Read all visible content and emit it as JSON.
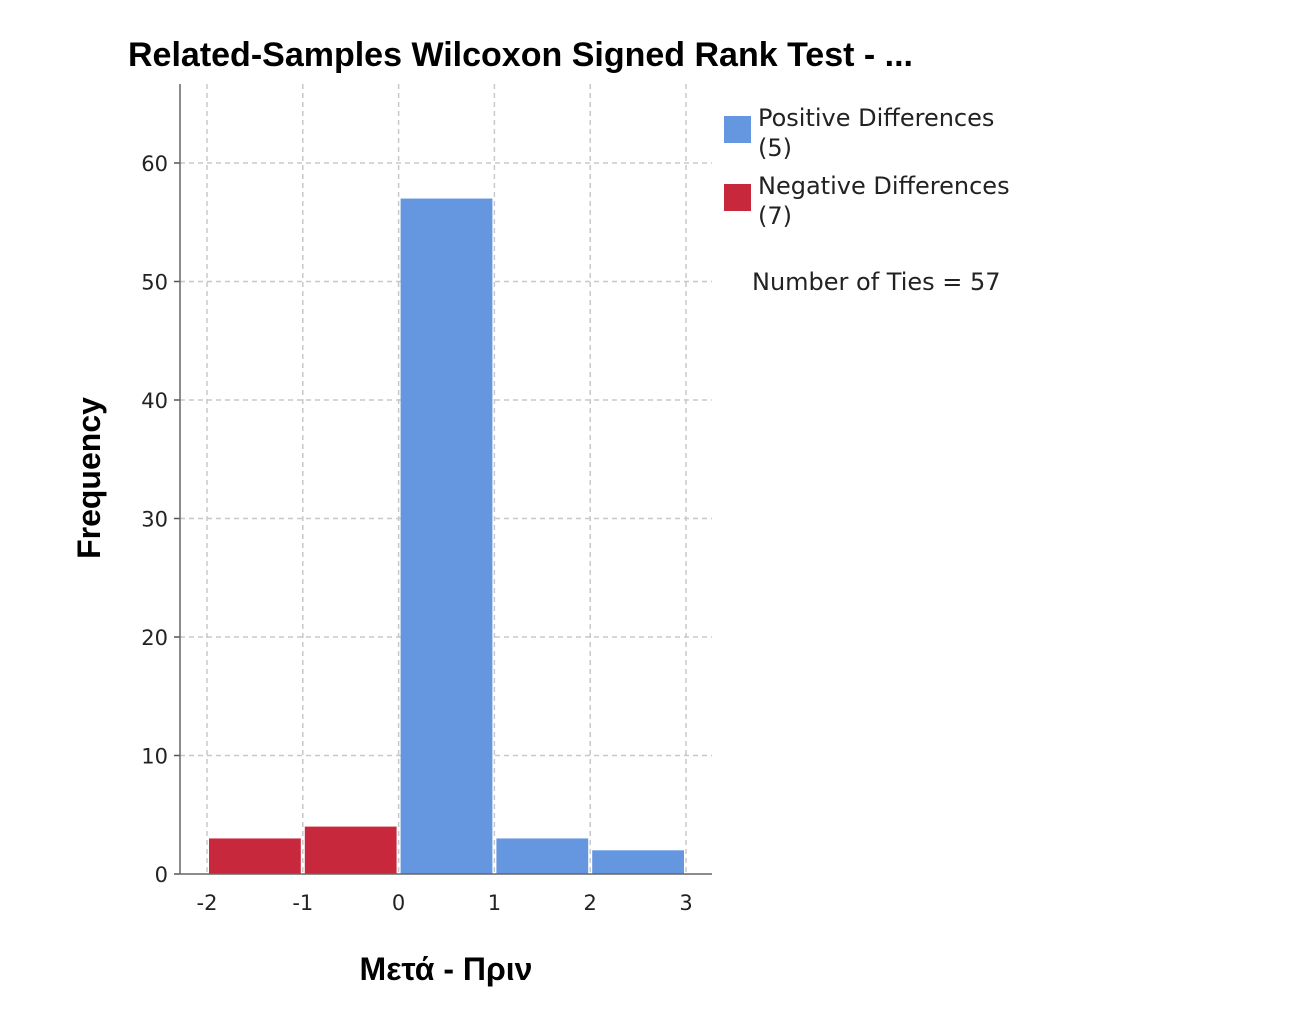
{
  "chart_data": {
    "type": "bar",
    "title": "Related-Samples Wilcoxon Signed Rank Test - ...",
    "xlabel": "Μετά - Πριν",
    "ylabel": "Frequency",
    "xlim": [
      -2,
      3
    ],
    "ylim": [
      0,
      66
    ],
    "xticks": [
      "-2",
      "-1",
      "0",
      "1",
      "2",
      "3"
    ],
    "yticks": [
      "0",
      "10",
      "20",
      "30",
      "40",
      "50",
      "60"
    ],
    "grid": true,
    "colors": {
      "positive": "#6596e0",
      "negative": "#c8283c"
    },
    "bins": [
      {
        "x0": -2,
        "x1": -1,
        "value": 3,
        "series": "negative"
      },
      {
        "x0": -1,
        "x1": 0,
        "value": 4,
        "series": "negative"
      },
      {
        "x0": 0,
        "x1": 1,
        "value": 57,
        "series": "positive"
      },
      {
        "x0": 1,
        "x1": 2,
        "value": 3,
        "series": "positive"
      },
      {
        "x0": 2,
        "x1": 3,
        "value": 2,
        "series": "positive"
      }
    ],
    "legend": {
      "placement": "top-right",
      "entries": [
        {
          "series": "positive",
          "line1": "Positive Differences",
          "line2": "(5)"
        },
        {
          "series": "negative",
          "line1": "Negative Differences",
          "line2": "(7)"
        }
      ]
    },
    "annotation": "Number of Ties = 57"
  }
}
